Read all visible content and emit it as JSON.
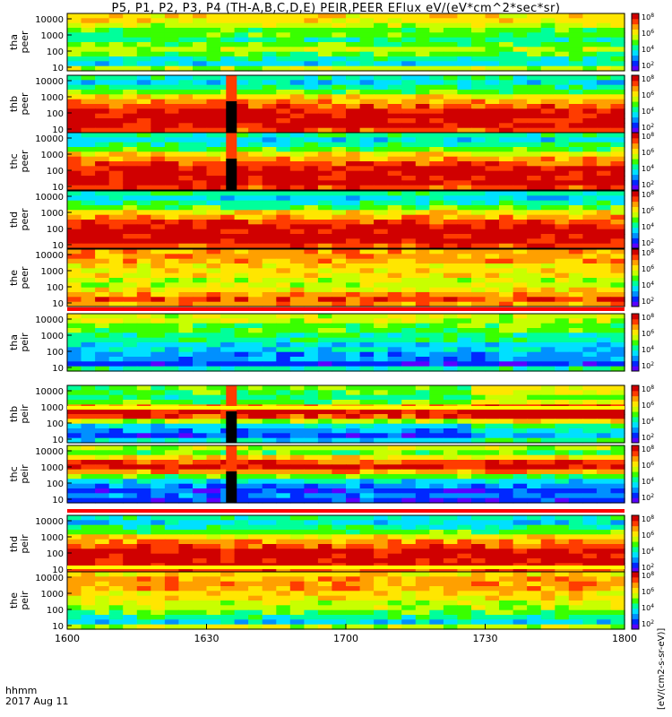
{
  "title": "P5, P1, P2, P3, P4 (TH-A,B,C,D,E) PEIR,PEER EFlux eV/(eV*cm^2*sec*sr)",
  "footer": {
    "hhmm": "hhmm",
    "date": "2017 Aug 11"
  },
  "colorbar_units": "[eV/(cm2-s-sr-eV)]",
  "colors": {
    "cmap": [
      "#5b00ff",
      "#0028ff",
      "#0090ff",
      "#00e0ff",
      "#00ff9b",
      "#39ff00",
      "#c8ff00",
      "#ffe600",
      "#ffa000",
      "#ff3c00",
      "#d00000"
    ],
    "panel_border": "#000000",
    "background": "#ffffff",
    "separator_red": "#ff0000",
    "separator_yellow": "#ffff00"
  },
  "chart_data": {
    "type": "heatmap",
    "x_axis": {
      "ticks": [
        "1600",
        "1630",
        "1700",
        "1730",
        "1800"
      ],
      "range": [
        "1600",
        "1800"
      ]
    },
    "y_axis": {
      "scale": "log",
      "ticks": [
        "10",
        "100",
        "1000",
        "10000"
      ]
    },
    "colorbar": {
      "scale": "log",
      "ticks": [
        "10^2",
        "10^4",
        "10^6",
        "10^8"
      ]
    },
    "panels": [
      {
        "probe": "tha",
        "species": "peer",
        "label": "tha\npeer",
        "base": "yellow-green",
        "gap": false
      },
      {
        "probe": "thb",
        "species": "peer",
        "label": "thb\npeer",
        "base": "red",
        "gap": true
      },
      {
        "probe": "thc",
        "species": "peer",
        "label": "thc\npeer",
        "base": "red",
        "gap": true
      },
      {
        "probe": "thd",
        "species": "peer",
        "label": "thd\npeer",
        "base": "red",
        "gap": false
      },
      {
        "probe": "the",
        "species": "peer",
        "label": "the\npeer",
        "base": "orange",
        "gap": false
      },
      {
        "probe": "tha",
        "species": "peir",
        "label": "tha\npeir",
        "base": "green",
        "gap": false
      },
      {
        "probe": "thb",
        "species": "peir",
        "label": "thb\npeir",
        "base": "green-red",
        "gap": true
      },
      {
        "probe": "thc",
        "species": "peir",
        "label": "thc\npeir",
        "base": "red-blue",
        "gap": true
      },
      {
        "probe": "thd",
        "species": "peir",
        "label": "thd\npeir",
        "base": "red",
        "gap": false
      },
      {
        "probe": "the",
        "species": "peir",
        "label": "the\npeir",
        "base": "yellow",
        "gap": false
      }
    ]
  }
}
